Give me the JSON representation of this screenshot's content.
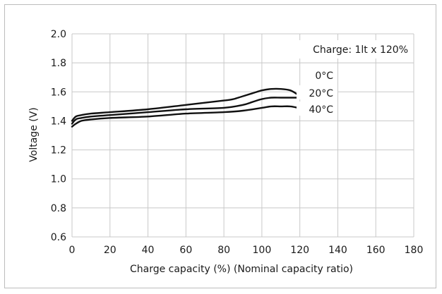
{
  "chart_data": {
    "type": "line",
    "xlabel": "Charge capacity (%) (Nominal capacity ratio)",
    "ylabel": "Voltage (V)",
    "xlim": [
      0,
      180
    ],
    "ylim": [
      0.6,
      2.0
    ],
    "x_ticks": [
      "0",
      "20",
      "40",
      "60",
      "80",
      "100",
      "120",
      "140",
      "160",
      "180"
    ],
    "y_ticks": [
      "0.6",
      "0.8",
      "1.0",
      "1.2",
      "1.4",
      "1.6",
      "1.8",
      "2.0"
    ],
    "grid": true,
    "annotation": "Charge: 1lt x 120%",
    "series": [
      {
        "name": "0°C",
        "x": [
          0,
          2,
          5,
          10,
          20,
          40,
          60,
          80,
          85,
          90,
          95,
          100,
          105,
          110,
          115,
          119
        ],
        "y": [
          1.4,
          1.43,
          1.44,
          1.45,
          1.46,
          1.48,
          1.51,
          1.54,
          1.55,
          1.57,
          1.59,
          1.61,
          1.62,
          1.62,
          1.61,
          1.58
        ]
      },
      {
        "name": "20°C",
        "x": [
          0,
          2,
          5,
          10,
          20,
          40,
          60,
          80,
          90,
          95,
          100,
          105,
          110,
          115,
          119
        ],
        "y": [
          1.38,
          1.41,
          1.42,
          1.43,
          1.44,
          1.46,
          1.48,
          1.49,
          1.51,
          1.53,
          1.55,
          1.56,
          1.56,
          1.56,
          1.56
        ]
      },
      {
        "name": "40°C",
        "x": [
          0,
          2,
          5,
          10,
          20,
          40,
          60,
          80,
          90,
          100,
          105,
          110,
          115,
          119
        ],
        "y": [
          1.36,
          1.38,
          1.4,
          1.41,
          1.42,
          1.43,
          1.45,
          1.46,
          1.47,
          1.49,
          1.5,
          1.5,
          1.5,
          1.49
        ]
      }
    ]
  }
}
